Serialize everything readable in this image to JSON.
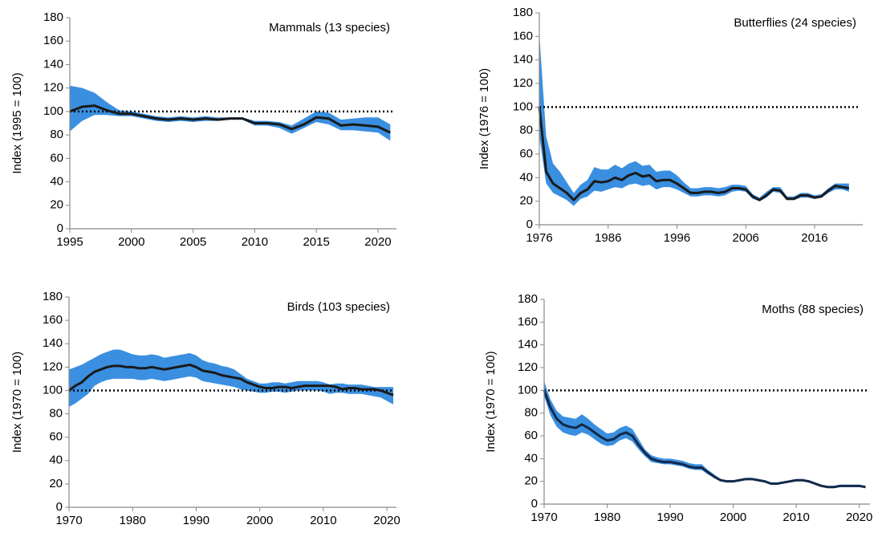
{
  "chart_data": [
    {
      "type": "line",
      "title": "Mammals (13 species)",
      "y_label": "Index (1995 = 100)",
      "x": [
        1995,
        1996,
        1997,
        1998,
        1999,
        2000,
        2001,
        2002,
        2003,
        2004,
        2005,
        2006,
        2007,
        2008,
        2009,
        2010,
        2011,
        2012,
        2013,
        2014,
        2015,
        2016,
        2017,
        2018,
        2019,
        2020,
        2021
      ],
      "series": [
        {
          "color": "#1a1a1a",
          "values": [
            100,
            104,
            105,
            101,
            98,
            98,
            96,
            94,
            93,
            94,
            93,
            94,
            93,
            94,
            94,
            90,
            90,
            89,
            85,
            89,
            95,
            94,
            88,
            89,
            88,
            87,
            82
          ]
        }
      ],
      "band": {
        "color": "#3a8fe0",
        "lower": [
          83,
          92,
          97,
          97,
          96,
          96,
          94,
          92,
          91,
          92,
          91,
          92,
          92,
          93,
          93,
          88,
          88,
          86,
          81,
          86,
          91,
          89,
          84,
          84,
          83,
          82,
          75
        ],
        "upper": [
          122,
          120,
          116,
          108,
          101,
          100,
          98,
          96,
          95,
          96,
          95,
          96,
          95,
          95,
          95,
          92,
          92,
          91,
          88,
          94,
          100,
          99,
          93,
          94,
          95,
          95,
          89
        ]
      },
      "reference": 100,
      "xlim": [
        1995,
        2021.5
      ],
      "ylim": [
        0,
        180
      ],
      "xticks": [
        1995,
        2000,
        2005,
        2010,
        2015,
        2020
      ],
      "yticks": [
        0,
        20,
        40,
        60,
        80,
        100,
        120,
        140,
        160,
        180
      ]
    },
    {
      "type": "line",
      "title": "Butterflies (24 species)",
      "y_label": "Index (1976 = 100)",
      "x": [
        1976,
        1977,
        1978,
        1979,
        1980,
        1981,
        1982,
        1983,
        1984,
        1985,
        1986,
        1987,
        1988,
        1989,
        1990,
        1991,
        1992,
        1993,
        1994,
        1995,
        1996,
        1997,
        1998,
        1999,
        2000,
        2001,
        2002,
        2003,
        2004,
        2005,
        2006,
        2007,
        2008,
        2009,
        2010,
        2011,
        2012,
        2013,
        2014,
        2015,
        2016,
        2017,
        2018,
        2019,
        2020,
        2021
      ],
      "series": [
        {
          "color": "#1a1a1a",
          "values": [
            100,
            45,
            35,
            31,
            27,
            21,
            27,
            30,
            37,
            36,
            37,
            40,
            38,
            42,
            44,
            41,
            42,
            37,
            38,
            38,
            35,
            31,
            27,
            27,
            28,
            28,
            27,
            28,
            31,
            31,
            30,
            24,
            21,
            25,
            30,
            29,
            22,
            22,
            25,
            25,
            23,
            24,
            29,
            33,
            32,
            31
          ]
        }
      ],
      "band": {
        "color": "#3a8fe0",
        "lower": [
          75,
          35,
          27,
          24,
          21,
          16,
          22,
          24,
          29,
          28,
          30,
          32,
          31,
          34,
          35,
          33,
          34,
          30,
          32,
          32,
          30,
          27,
          24,
          24,
          25,
          25,
          24,
          25,
          28,
          29,
          28,
          22,
          20,
          23,
          28,
          27,
          21,
          21,
          23,
          23,
          22,
          23,
          27,
          30,
          30,
          28
        ],
        "upper": [
          162,
          75,
          52,
          45,
          36,
          27,
          34,
          38,
          49,
          47,
          47,
          51,
          48,
          52,
          54,
          50,
          51,
          45,
          46,
          46,
          42,
          36,
          31,
          31,
          32,
          32,
          31,
          32,
          34,
          34,
          33,
          26,
          23,
          28,
          32,
          32,
          24,
          24,
          27,
          27,
          25,
          26,
          31,
          35,
          35,
          35
        ]
      },
      "reference": 100,
      "xlim": [
        1976,
        2023
      ],
      "ylim": [
        0,
        180
      ],
      "xticks": [
        1976,
        1986,
        1996,
        2006,
        2016
      ],
      "yticks": [
        0,
        20,
        40,
        60,
        80,
        100,
        120,
        140,
        160,
        180
      ]
    },
    {
      "type": "line",
      "title": "Birds (103 species)",
      "y_label": "Index (1970 = 100)",
      "x": [
        1970,
        1971,
        1972,
        1973,
        1974,
        1975,
        1976,
        1977,
        1978,
        1979,
        1980,
        1981,
        1982,
        1983,
        1984,
        1985,
        1986,
        1987,
        1988,
        1989,
        1990,
        1991,
        1992,
        1993,
        1994,
        1995,
        1996,
        1997,
        1998,
        1999,
        2000,
        2001,
        2002,
        2003,
        2004,
        2005,
        2006,
        2007,
        2008,
        2009,
        2010,
        2011,
        2012,
        2013,
        2014,
        2015,
        2016,
        2017,
        2018,
        2019,
        2020,
        2021
      ],
      "series": [
        {
          "color": "#1a1a1a",
          "values": [
            100,
            104,
            107,
            112,
            116,
            118,
            120,
            121,
            121,
            120,
            120,
            119,
            119,
            120,
            119,
            118,
            119,
            120,
            121,
            122,
            120,
            117,
            116,
            115,
            113,
            112,
            111,
            110,
            107,
            105,
            103,
            102,
            102,
            103,
            103,
            102,
            103,
            104,
            104,
            104,
            104,
            104,
            103,
            101,
            102,
            102,
            101,
            101,
            101,
            100,
            98,
            96
          ]
        }
      ],
      "band": {
        "color": "#3a8fe0",
        "lower": [
          86,
          89,
          93,
          97,
          104,
          107,
          109,
          110,
          110,
          110,
          110,
          109,
          109,
          110,
          109,
          108,
          109,
          110,
          111,
          112,
          111,
          108,
          107,
          106,
          105,
          104,
          103,
          101,
          100,
          99,
          98,
          98,
          99,
          99,
          98,
          99,
          100,
          100,
          100,
          100,
          99,
          97,
          98,
          98,
          97,
          97,
          97,
          96,
          95,
          94,
          91,
          88
        ],
        "upper": [
          118,
          120,
          122,
          125,
          128,
          131,
          133,
          135,
          135,
          133,
          131,
          130,
          130,
          131,
          130,
          128,
          129,
          130,
          131,
          132,
          130,
          126,
          124,
          123,
          121,
          120,
          118,
          114,
          110,
          108,
          106,
          106,
          107,
          107,
          106,
          107,
          108,
          108,
          108,
          108,
          107,
          105,
          106,
          106,
          105,
          105,
          105,
          104,
          103,
          103,
          103,
          103
        ]
      },
      "reference": 100,
      "xlim": [
        1970,
        2021.5
      ],
      "ylim": [
        0,
        180
      ],
      "xticks": [
        1970,
        1980,
        1990,
        2000,
        2010,
        2020
      ],
      "yticks": [
        0,
        20,
        40,
        60,
        80,
        100,
        120,
        140,
        160,
        180
      ]
    },
    {
      "type": "line",
      "title": "Moths (88 species)",
      "y_label": "Index (1970 = 100)",
      "x": [
        1970,
        1971,
        1972,
        1973,
        1974,
        1975,
        1976,
        1977,
        1978,
        1979,
        1980,
        1981,
        1982,
        1983,
        1984,
        1985,
        1986,
        1987,
        1988,
        1989,
        1990,
        1991,
        1992,
        1993,
        1994,
        1995,
        1996,
        1997,
        1998,
        1999,
        2000,
        2001,
        2002,
        2003,
        2004,
        2005,
        2006,
        2007,
        2008,
        2009,
        2010,
        2011,
        2012,
        2013,
        2014,
        2015,
        2016,
        2017,
        2018,
        2019,
        2020,
        2021
      ],
      "series": [
        {
          "color": "#12294a",
          "values": [
            100,
            85,
            75,
            70,
            68,
            67,
            70,
            67,
            63,
            59,
            56,
            57,
            61,
            63,
            60,
            52,
            45,
            40,
            38,
            37,
            37,
            36,
            35,
            33,
            32,
            32,
            28,
            24,
            21,
            20,
            20,
            21,
            22,
            22,
            21,
            20,
            18,
            18,
            19,
            20,
            21,
            21,
            20,
            18,
            16,
            15,
            15,
            16,
            16,
            16,
            16,
            15
          ]
        }
      ],
      "band": {
        "color": "#3a8fe0",
        "lower": [
          95,
          78,
          68,
          63,
          61,
          60,
          63,
          61,
          57,
          53,
          51,
          52,
          56,
          58,
          55,
          48,
          42,
          37,
          36,
          35,
          35,
          34,
          33,
          31,
          30,
          30,
          26,
          23,
          20,
          19,
          19,
          20,
          21,
          21,
          20,
          19,
          17,
          17,
          18,
          19,
          20,
          20,
          19,
          17,
          15,
          14,
          14,
          15,
          15,
          15,
          15,
          14
        ],
        "upper": [
          108,
          92,
          82,
          77,
          76,
          75,
          79,
          75,
          70,
          66,
          62,
          63,
          67,
          69,
          66,
          57,
          48,
          43,
          41,
          40,
          40,
          39,
          38,
          36,
          35,
          35,
          30,
          26,
          22,
          21,
          21,
          22,
          23,
          23,
          22,
          21,
          19,
          19,
          20,
          21,
          22,
          22,
          21,
          19,
          17,
          16,
          16,
          17,
          17,
          17,
          17,
          16
        ]
      },
      "reference": 100,
      "xlim": [
        1970,
        2021.7
      ],
      "ylim": [
        0,
        180
      ],
      "xticks": [
        1970,
        1980,
        1990,
        2000,
        2010,
        2020
      ],
      "yticks": [
        0,
        20,
        40,
        60,
        80,
        100,
        120,
        140,
        160,
        180
      ]
    }
  ]
}
